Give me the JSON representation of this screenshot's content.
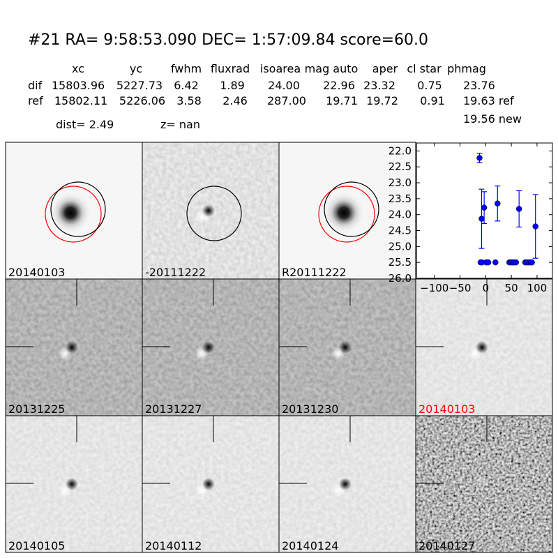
{
  "header": {
    "title": "#21   RA= 9:58:53.090 DEC= 1:57:09.84      score=60.0",
    "columns": [
      "xc",
      "yc",
      "fwhm",
      "fluxrad",
      "isoarea",
      "mag auto",
      "aper",
      "cl star",
      "phmag"
    ],
    "rows": [
      {
        "label": "dif",
        "values": [
          "15803.96",
          "5227.73",
          "6.42",
          "1.89",
          "24.00",
          "22.96",
          "23.32",
          "0.75",
          "23.76"
        ]
      },
      {
        "label": "ref",
        "values": [
          "15802.11",
          "5226.06",
          "3.58",
          "2.46",
          "287.00",
          "19.71",
          "19.72",
          "0.91",
          "19.63 ref"
        ]
      }
    ],
    "new_mag": "19.56 new",
    "dist": "dist=  2.49",
    "z": "z=   nan"
  },
  "panels": [
    {
      "label": "20140103"
    },
    {
      "label": "-20111222"
    },
    {
      "label": "R20111222"
    },
    {
      "label": "20131225"
    },
    {
      "label": "20131227"
    },
    {
      "label": "20131230"
    },
    {
      "label": "20140103",
      "label_color": "#ff0000"
    },
    {
      "label": "20140105"
    },
    {
      "label": "20140112"
    },
    {
      "label": "20140124"
    },
    {
      "label": "20140127"
    }
  ],
  "chart_data": {
    "type": "errorbar",
    "xlim": [
      -135,
      130
    ],
    "ylim": [
      21.75,
      26
    ],
    "y_inverted": true,
    "xticks": [
      {
        "value": -100,
        "label": "−100"
      },
      {
        "value": -50,
        "label": "−50"
      },
      0,
      50,
      100
    ],
    "yticks": [
      {
        "value": 22,
        "label": "22.0"
      },
      22.5,
      {
        "value": 23,
        "label": "23.0"
      },
      23.5,
      {
        "value": 24,
        "label": "24.0"
      },
      24.5,
      {
        "value": 25,
        "label": "25.0"
      },
      25.5,
      {
        "value": 26,
        "label": "26.0"
      }
    ],
    "series": [
      {
        "color": "#0000ff",
        "x": [
          -12,
          -8,
          -3,
          23,
          65,
          97,
          -10,
          -7,
          1,
          5,
          19,
          46,
          50,
          53,
          55,
          59,
          77,
          81,
          84,
          88,
          90
        ],
        "values": [
          22.22,
          24.13,
          23.78,
          23.65,
          23.82,
          24.37,
          25.5,
          25.5,
          25.5,
          25.5,
          25.5,
          25.5,
          25.5,
          25.5,
          25.5,
          25.5,
          25.5,
          25.5,
          25.5,
          25.5,
          25.5
        ],
        "errors": [
          0.15,
          0.93,
          0.5,
          0.55,
          0.57,
          1.0,
          null,
          null,
          null,
          null,
          null,
          null,
          null,
          null,
          null,
          null,
          null,
          null,
          null,
          null,
          null
        ]
      }
    ]
  }
}
